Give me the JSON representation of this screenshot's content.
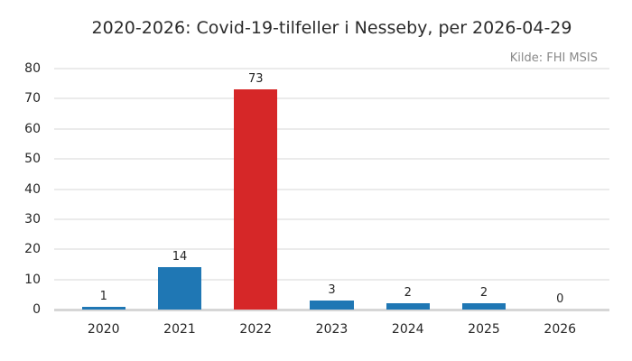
{
  "chart_data": {
    "type": "bar",
    "title": "2020-2026: Covid-19-tilfeller i Nesseby, per 2026-04-29",
    "annotation": "Kilde: FHI MSIS",
    "categories": [
      "2020",
      "2021",
      "2022",
      "2023",
      "2024",
      "2025",
      "2026"
    ],
    "values": [
      1,
      14,
      73,
      3,
      2,
      2,
      0
    ],
    "value_labels": [
      "1",
      "14",
      "73",
      "3",
      "2",
      "2",
      "0"
    ],
    "bar_colors": [
      "#1f77b4",
      "#1f77b4",
      "#d62728",
      "#1f77b4",
      "#1f77b4",
      "#1f77b4",
      "#1f77b4"
    ],
    "xlabel": "",
    "ylabel": "",
    "ylim": [
      0,
      80
    ],
    "yticks": [
      0,
      10,
      20,
      30,
      40,
      50,
      60,
      70,
      80
    ],
    "grid": "horizontal",
    "legend": "none",
    "colors": {
      "bar_blue": "#1f77b4",
      "bar_red": "#d62728",
      "grid_line": "#ebebeb",
      "axis_line": "#d6d6d6",
      "text": "#262626",
      "muted_text": "#8a8a8a",
      "background": "#ffffff"
    }
  }
}
